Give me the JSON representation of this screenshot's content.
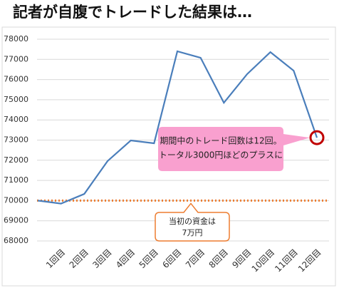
{
  "chart_data": {
    "type": "line",
    "title": "記者が自腹でトレードした結果は…",
    "categories": [
      null,
      "1回目",
      "2回目",
      "3回目",
      "4回目",
      "5回目",
      "6回目",
      "7回目",
      "8回目",
      "9回目",
      "10回目",
      "11回目",
      "12回目"
    ],
    "values": [
      70000,
      69850,
      70330,
      71960,
      72980,
      72840,
      77400,
      77080,
      74850,
      76270,
      77360,
      76440,
      73120
    ],
    "color": "#4a7ebb",
    "ylim": [
      68000,
      78000
    ],
    "yticks": [
      68000,
      69000,
      70000,
      71000,
      72000,
      73000,
      74000,
      75000,
      76000,
      77000,
      78000
    ],
    "grid": true,
    "reference_line": {
      "value": 70000,
      "color": "#ed7d31"
    },
    "annotations": [
      {
        "lines": [
          "期間中のトレード回数は12回。",
          "トータル3000円ほどのプラスに"
        ],
        "color": "#f9a0cf"
      },
      {
        "lines": [
          "当初の資金は",
          "7万円"
        ],
        "color": "#ed7d31"
      }
    ],
    "highlight_color": "#c00000"
  }
}
